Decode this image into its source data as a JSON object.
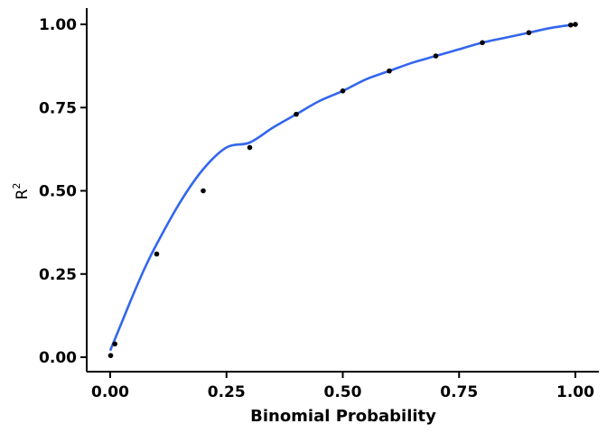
{
  "chart_data": {
    "type": "scatter",
    "title": "",
    "xlabel": "Binomial Probability",
    "ylabel": "R",
    "ylabel_superscript": "2",
    "xlim": [
      0,
      1
    ],
    "ylim": [
      0,
      1
    ],
    "x_ticks": [
      0,
      0.25,
      0.5,
      0.75,
      1
    ],
    "y_ticks": [
      0,
      0.25,
      0.5,
      0.75,
      1
    ],
    "x_tick_labels": [
      "0.00",
      "0.25",
      "0.50",
      "0.75",
      "1.00"
    ],
    "y_tick_labels": [
      "0.00",
      "0.25",
      "0.50",
      "0.75",
      "1.00"
    ],
    "grid": false,
    "legend": "none",
    "colors": {
      "points": "#000000",
      "fit_line": "#3366ee",
      "axes": "#000000"
    },
    "series": [
      {
        "kind": "points",
        "x": [
          0.001,
          0.01,
          0.1,
          0.2,
          0.3,
          0.4,
          0.5,
          0.6,
          0.7,
          0.8,
          0.9,
          0.99,
          1.0
        ],
        "y": [
          0.005,
          0.04,
          0.31,
          0.5,
          0.63,
          0.73,
          0.8,
          0.86,
          0.905,
          0.945,
          0.975,
          0.998,
          1.0
        ]
      },
      {
        "kind": "fit_line",
        "x": [
          0.0,
          0.025,
          0.05,
          0.075,
          0.1,
          0.15,
          0.2,
          0.25,
          0.3,
          0.35,
          0.4,
          0.45,
          0.5,
          0.55,
          0.6,
          0.65,
          0.7,
          0.75,
          0.8,
          0.85,
          0.9,
          0.95,
          1.0
        ],
        "y": [
          0.02,
          0.105,
          0.19,
          0.27,
          0.34,
          0.465,
          0.565,
          0.63,
          0.645,
          0.69,
          0.73,
          0.77,
          0.8,
          0.835,
          0.86,
          0.885,
          0.905,
          0.925,
          0.945,
          0.96,
          0.975,
          0.99,
          1.0
        ]
      }
    ]
  }
}
